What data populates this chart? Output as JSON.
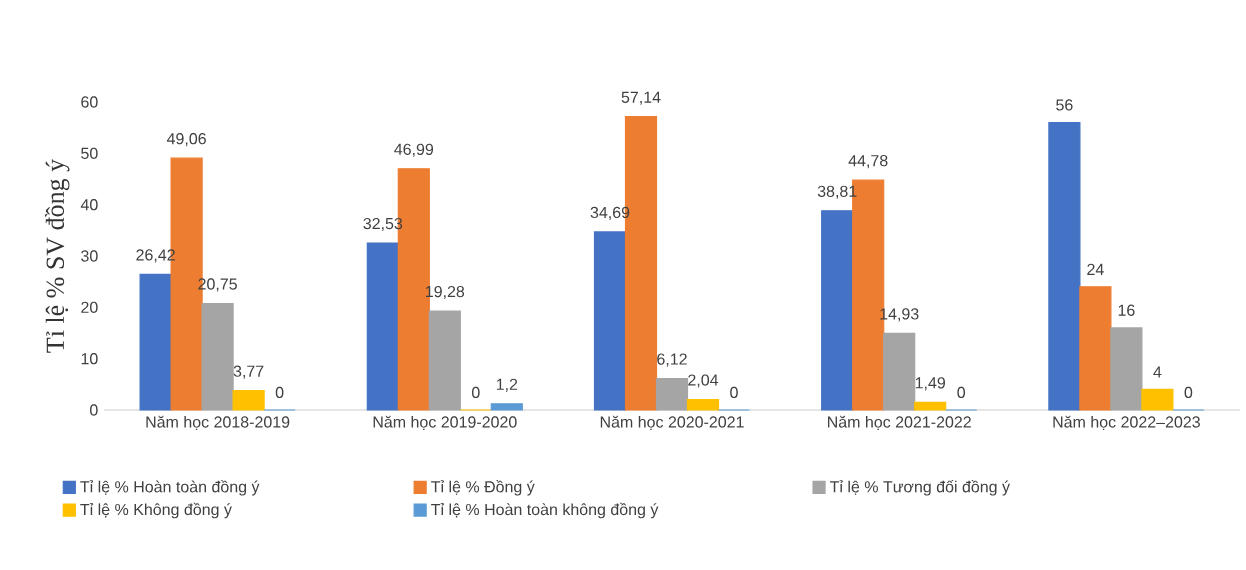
{
  "chart_data": {
    "type": "bar",
    "ylabel": "Tỉ lệ % SV đồng ý",
    "categories": [
      "Năm học 2018-2019",
      "Năm học 2019-2020",
      "Năm học 2020-2021",
      "Năm học 2021-2022",
      "Năm học 2022–2023"
    ],
    "series": [
      {
        "name": "Tỉ lệ % Hoàn toàn đồng ý",
        "color": "#4472c4",
        "values": [
          26.42,
          32.53,
          34.69,
          38.81,
          56
        ],
        "value_labels": [
          "26,42",
          "32,53",
          "34,69",
          "38,81",
          "56"
        ]
      },
      {
        "name": "Tỉ lệ % Đồng ý",
        "color": "#ed7d31",
        "values": [
          49.06,
          46.99,
          57.14,
          44.78,
          24
        ],
        "value_labels": [
          "49,06",
          "46,99",
          "57,14",
          "44,78",
          "24"
        ]
      },
      {
        "name": "Tỉ lệ % Tương đối đồng ý",
        "color": "#a5a5a5",
        "values": [
          20.75,
          19.28,
          6.12,
          14.93,
          16
        ],
        "value_labels": [
          "20,75",
          "19,28",
          "6,12",
          "14,93",
          "16"
        ]
      },
      {
        "name": "Tỉ lệ % Không đồng ý",
        "color": "#ffc000",
        "values": [
          3.77,
          0,
          2.04,
          1.49,
          4
        ],
        "value_labels": [
          "3,77",
          "0",
          "2,04",
          "1,49",
          "4"
        ]
      },
      {
        "name": "Tỉ lệ % Hoàn toàn không đồng ý",
        "color": "#5b9bd5",
        "values": [
          0,
          1.2,
          0,
          0,
          0
        ],
        "value_labels": [
          "0",
          "1,2",
          "0",
          "0",
          "0"
        ]
      }
    ],
    "ylim": [
      0,
      60
    ],
    "yticks": [
      0,
      10,
      20,
      30,
      40,
      50,
      60
    ],
    "legend": "bottom",
    "grid": false
  }
}
